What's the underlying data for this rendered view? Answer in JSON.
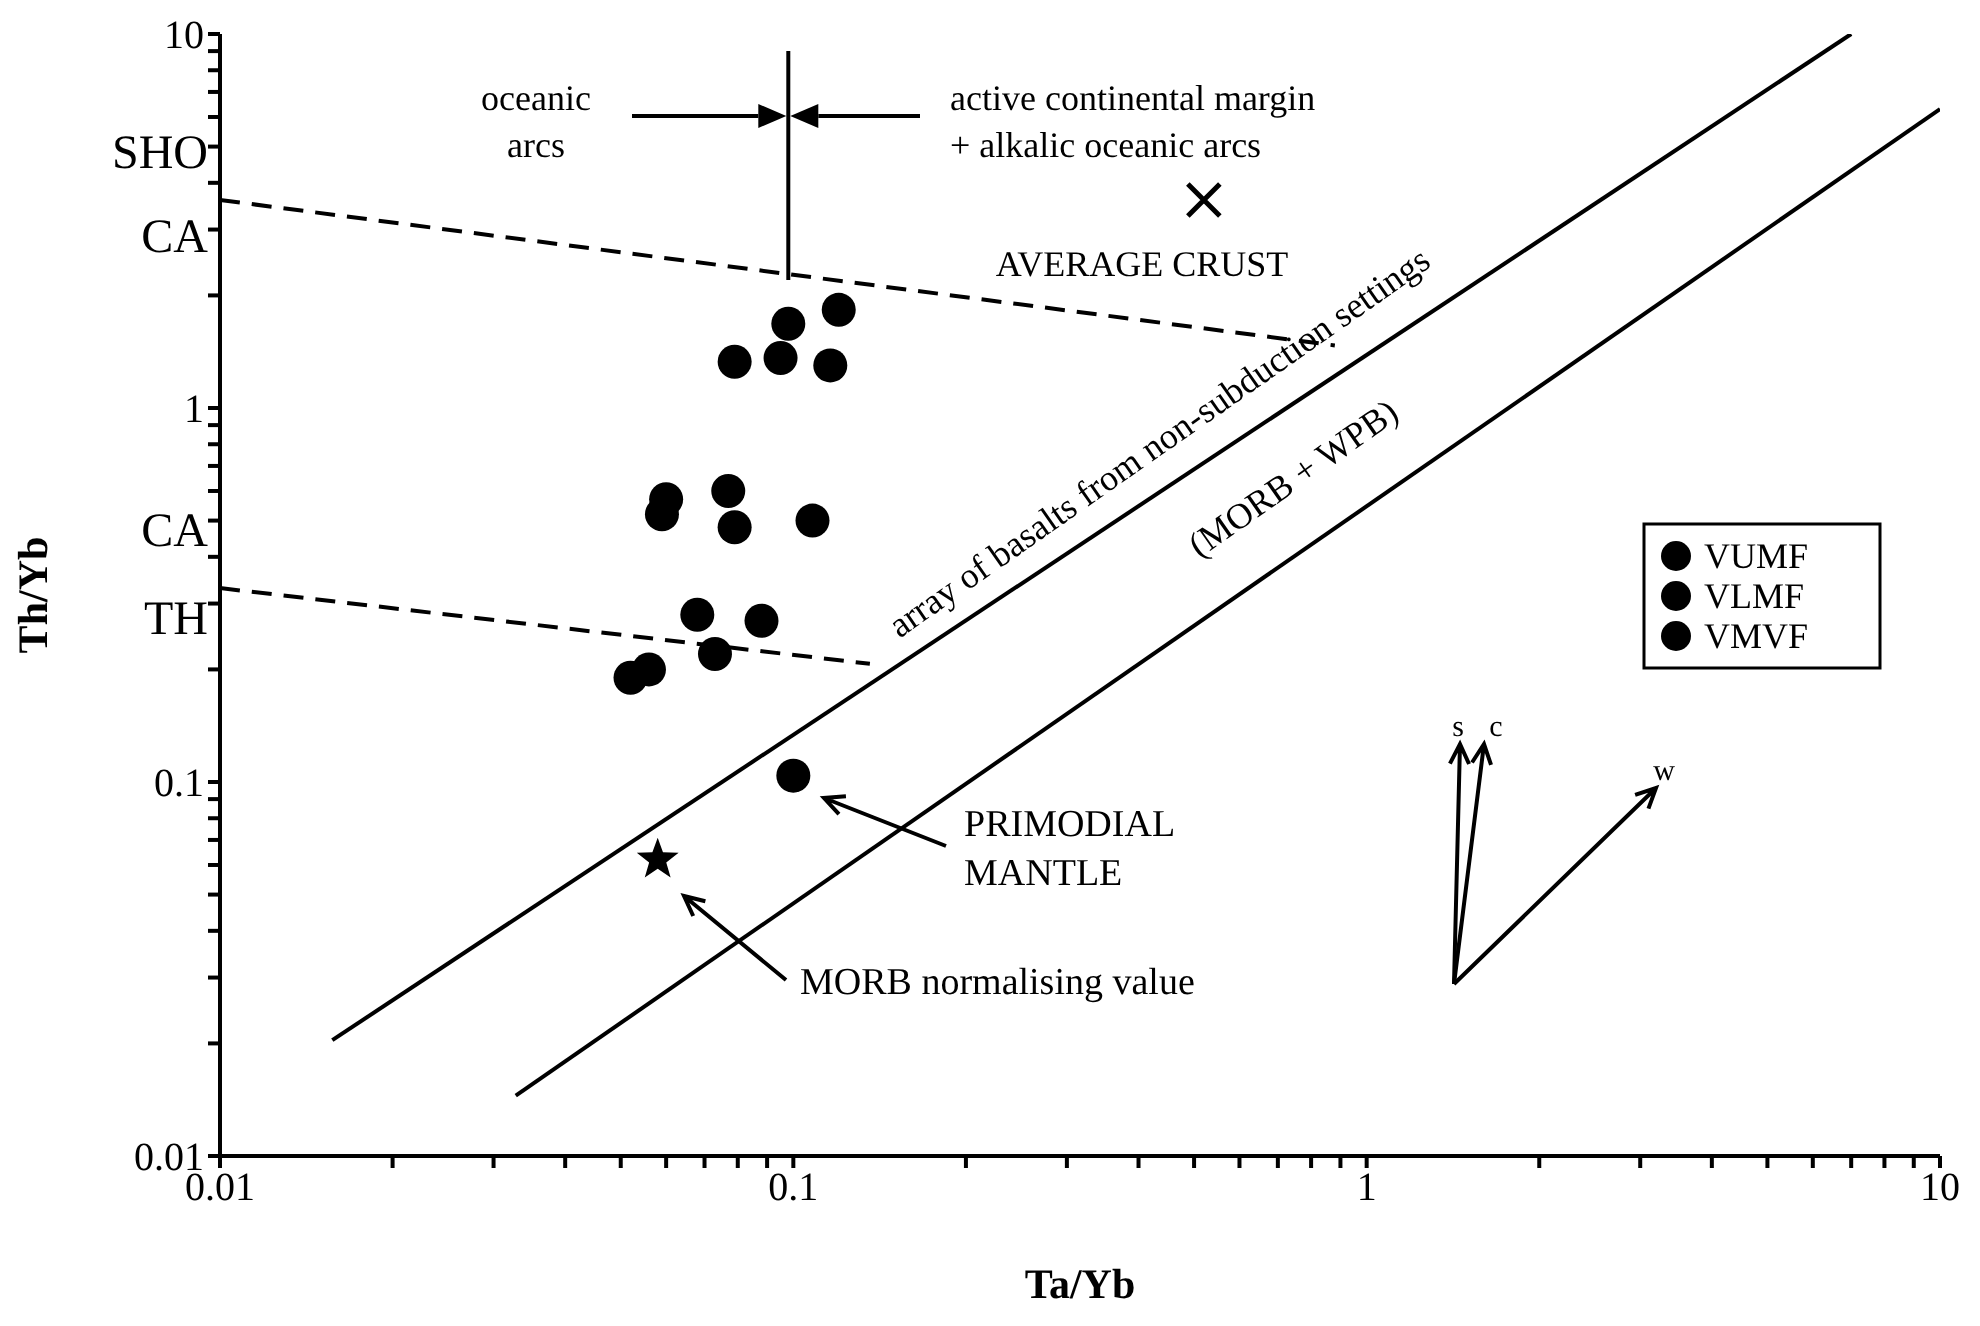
{
  "chart_data": {
    "type": "scatter",
    "xlabel": "Ta/Yb",
    "ylabel": "Th/Yb",
    "log": "xy",
    "grid": false,
    "legend": "right",
    "xlim": [
      0.01,
      10
    ],
    "ylim": [
      0.01,
      10
    ],
    "xticks": [
      0.01,
      {
        "value": 0.02,
        "label": null
      },
      {
        "value": 0.03,
        "label": null
      },
      {
        "value": 0.04,
        "label": null
      },
      {
        "value": 0.05,
        "label": null
      },
      {
        "value": 0.06,
        "label": null
      },
      {
        "value": 0.07,
        "label": null
      },
      {
        "value": 0.08,
        "label": null
      },
      {
        "value": 0.09,
        "label": null
      },
      0.1,
      {
        "value": 0.2,
        "label": null
      },
      {
        "value": 0.3,
        "label": null
      },
      {
        "value": 0.4,
        "label": null
      },
      {
        "value": 0.5,
        "label": null
      },
      {
        "value": 0.6,
        "label": null
      },
      {
        "value": 0.7,
        "label": null
      },
      {
        "value": 0.8,
        "label": null
      },
      {
        "value": 0.9,
        "label": null
      },
      1,
      {
        "value": 2,
        "label": null
      },
      {
        "value": 3,
        "label": null
      },
      {
        "value": 4,
        "label": null
      },
      {
        "value": 5,
        "label": null
      },
      {
        "value": 6,
        "label": null
      },
      {
        "value": 7,
        "label": null
      },
      {
        "value": 8,
        "label": null
      },
      {
        "value": 9,
        "label": null
      },
      10
    ],
    "yticks": [
      0.01,
      {
        "value": 0.02,
        "label": null
      },
      {
        "value": 0.03,
        "label": null
      },
      {
        "value": 0.04,
        "label": null
      },
      {
        "value": 0.05,
        "label": null
      },
      {
        "value": 0.06,
        "label": null
      },
      {
        "value": 0.07,
        "label": null
      },
      {
        "value": 0.08,
        "label": null
      },
      {
        "value": 0.09,
        "label": null
      },
      0.1,
      {
        "value": 0.2,
        "label": null
      },
      {
        "value": 0.3,
        "label": null
      },
      {
        "value": 0.4,
        "label": null
      },
      {
        "value": 0.5,
        "label": null
      },
      {
        "value": 0.6,
        "label": null
      },
      {
        "value": 0.7,
        "label": null
      },
      {
        "value": 0.8,
        "label": null
      },
      {
        "value": 0.9,
        "label": null
      },
      1,
      {
        "value": 2,
        "label": null
      },
      {
        "value": 3,
        "label": null
      },
      {
        "value": 4,
        "label": null
      },
      {
        "value": 5,
        "label": null
      },
      {
        "value": 6,
        "label": null
      },
      {
        "value": 7,
        "label": null
      },
      {
        "value": 8,
        "label": null
      },
      {
        "value": 9,
        "label": null
      },
      10
    ],
    "series": [
      {
        "name": "VUMF",
        "marker": "circle",
        "color": "#000000",
        "x": [
          0.12,
          0.098,
          0.079,
          0.095,
          0.116
        ],
        "values": [
          1.83,
          1.68,
          1.33,
          1.36,
          1.3
        ]
      },
      {
        "name": "VLMF",
        "marker": "circle",
        "color": "#000000",
        "x": [
          0.06,
          0.059,
          0.077,
          0.079,
          0.108
        ],
        "values": [
          0.57,
          0.52,
          0.6,
          0.48,
          0.5
        ]
      },
      {
        "name": "VMVF",
        "marker": "circle",
        "color": "#000000",
        "x": [
          0.068,
          0.088,
          0.073,
          0.056,
          0.052
        ],
        "values": [
          0.28,
          0.27,
          0.22,
          0.2,
          0.19
        ]
      },
      {
        "marker": "cross",
        "color": "#000000",
        "x": [
          0.52
        ],
        "values": [
          3.6
        ]
      },
      {
        "marker": "circle",
        "color": "#000000",
        "x": [
          0.1
        ],
        "values": [
          0.104
        ]
      },
      {
        "marker": "star",
        "color": "#000000",
        "x": [
          0.058
        ],
        "values": [
          0.062
        ]
      },
      {
        "type": "line",
        "marker": "none",
        "line_style": "dashed",
        "color": "#000000",
        "x": [
          0.01,
          0.88
        ],
        "values": [
          3.6,
          1.47
        ]
      },
      {
        "type": "line",
        "marker": "none",
        "line_style": "dashed",
        "color": "#000000",
        "x": [
          0.01,
          0.136
        ],
        "values": [
          0.33,
          0.207
        ]
      },
      {
        "type": "line",
        "marker": "none",
        "line_style": "solid",
        "color": "#000000",
        "x": [
          0.0157,
          7
        ],
        "values": [
          0.0204,
          10
        ]
      },
      {
        "type": "line",
        "marker": "none",
        "line_style": "solid",
        "color": "#000000",
        "x": [
          0.0328,
          10
        ],
        "values": [
          0.0145,
          6.3
        ]
      },
      {
        "type": "line",
        "marker": "none",
        "line_style": "solid",
        "color": "#000000",
        "x": [
          0.098,
          0.098
        ],
        "values": [
          9,
          2.2
        ]
      }
    ],
    "annotations": [
      "oceanic\narcs",
      "active continental margin\n+ alkalic oceanic arcs",
      "AVERAGE CRUST",
      "array of basalts from non-subduction settings",
      "(MORB + WPB)",
      "PRIMODIAL\nMANTLE",
      "MORB normalising value",
      "SHO",
      "CA",
      "CA",
      "TH",
      "s",
      "c",
      "w"
    ]
  }
}
